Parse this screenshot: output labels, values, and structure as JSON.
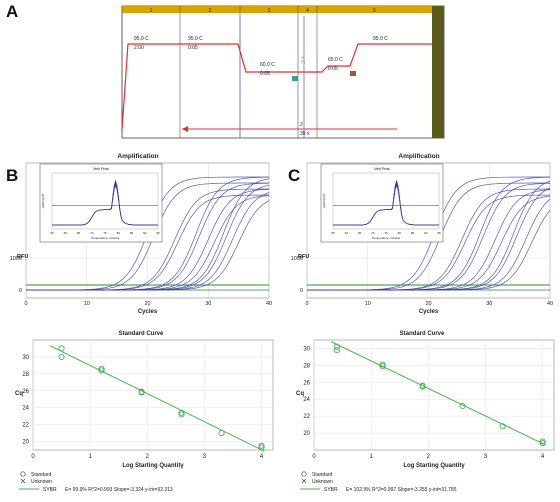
{
  "panels": {
    "a": "A",
    "b": "B",
    "c": "C"
  },
  "protocol": {
    "step_labels": [
      "1",
      "2",
      "3",
      "4",
      "5"
    ],
    "segments": [
      {
        "temp": "95.0 C",
        "time": "2:00"
      },
      {
        "temp": "95.0 C",
        "time": "0:05"
      },
      {
        "temp": "60.0 C",
        "time": "0:05"
      },
      {
        "temp": "65.0 C",
        "time": "0:05"
      },
      {
        "temp": "95.0 C",
        "time": ""
      }
    ],
    "goto_step": "2",
    "goto_cycles": "39 x",
    "plate_read_text": "+ C"
  },
  "amplification": {
    "title": "Amplification",
    "ylabel": "RFU",
    "xlabel": "Cycles",
    "x_ticks": [
      "0",
      "10",
      "20",
      "30",
      "40"
    ],
    "y_ticks": [
      "0",
      "1000"
    ],
    "threshold_color": "#2e8b2e",
    "curve_color": "#3a3fa8",
    "melt_inset": {
      "title": "Melt Peak",
      "xlabel": "Temperature, Celsius",
      "ylabel": "-d(RFU)/dT",
      "x_ticks": [
        "55",
        "60",
        "65",
        "70",
        "75",
        "80",
        "85",
        "90",
        "95"
      ]
    }
  },
  "standard_curve": {
    "title": "Standard Curve",
    "ylabel": "Cq",
    "xlabel": "Log Starting Quantity",
    "x_ticks": [
      "0",
      "1",
      "2",
      "3",
      "4"
    ],
    "legend_standard": "Standard",
    "legend_unknown": "Unknown",
    "series_name": "SYBR",
    "line_color": "#4caf50",
    "marker_color": "#4caf50"
  },
  "chart_data": [
    {
      "type": "line",
      "title": "Amplification",
      "panel": "B",
      "xlabel": "Cycles",
      "ylabel": "RFU",
      "xlim": [
        0,
        40
      ],
      "ct_values": [
        20.0,
        21.0,
        24.5,
        25.0,
        28.0,
        28.5,
        30.0,
        31.0,
        32.5,
        33.0,
        34.0,
        35.0
      ]
    },
    {
      "type": "line",
      "title": "Amplification",
      "panel": "C",
      "xlabel": "Cycles",
      "ylabel": "RFU",
      "xlim": [
        0,
        40
      ],
      "ct_values": [
        21.0,
        22.0,
        25.5,
        26.0,
        28.5,
        29.0,
        31.0,
        32.0,
        34.0,
        34.5,
        36.0,
        37.0
      ]
    },
    {
      "type": "scatter",
      "title": "Standard Curve",
      "panel": "B",
      "xlabel": "Log Starting Quantity",
      "ylabel": "Cq",
      "xlim": [
        0,
        4.2
      ],
      "ylim": [
        19,
        32
      ],
      "y_ticks": [
        20,
        22,
        24,
        26,
        28,
        30
      ],
      "points": [
        [
          0.5,
          31.0
        ],
        [
          0.5,
          30.0
        ],
        [
          1.2,
          28.6
        ],
        [
          1.2,
          28.4
        ],
        [
          1.9,
          25.9
        ],
        [
          1.9,
          25.8
        ],
        [
          2.6,
          23.4
        ],
        [
          2.6,
          23.2
        ],
        [
          3.3,
          21.0
        ],
        [
          4.0,
          19.5
        ],
        [
          4.0,
          19.3
        ]
      ],
      "fit": {
        "slope": -3.324,
        "intercept": 32.313
      },
      "legend_label": "E= 99.9% R^2=0.993 Slope=-3.324 y-int=32.313"
    },
    {
      "type": "scatter",
      "title": "Standard Curve",
      "panel": "C",
      "xlabel": "Log Starting Quantity",
      "ylabel": "Cq",
      "xlim": [
        0,
        4.2
      ],
      "ylim": [
        18,
        31
      ],
      "y_ticks": [
        20,
        22,
        24,
        26,
        28,
        30
      ],
      "points": [
        [
          0.4,
          30.2
        ],
        [
          0.4,
          29.8
        ],
        [
          1.2,
          28.1
        ],
        [
          1.2,
          27.9
        ],
        [
          1.9,
          25.6
        ],
        [
          1.9,
          25.5
        ],
        [
          2.6,
          23.2
        ],
        [
          3.3,
          20.8
        ],
        [
          4.0,
          19.0
        ],
        [
          4.0,
          18.8
        ]
      ],
      "fit": {
        "slope": -3.255,
        "intercept": 31.785
      },
      "legend_label": "E= 102.9% R^2=0.997 Slope=-3.255 y-int=31.785"
    }
  ]
}
